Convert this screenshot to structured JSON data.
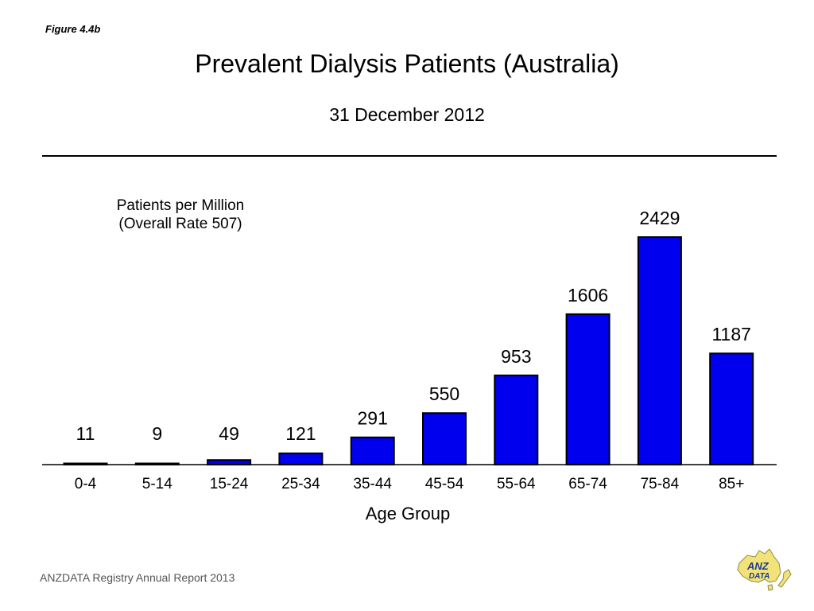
{
  "figure_label": "Figure 4.4b",
  "footer": "ANZDATA Registry Annual Report 2013",
  "logo": {
    "text_top": "ANZ",
    "text_bottom": "DATA"
  },
  "colors": {
    "bar": "#0000EE",
    "bar_stroke": "#000000",
    "logo_fill": "#F3E27A",
    "logo_text": "#1A3A8C"
  },
  "chart_data": {
    "type": "bar",
    "title": "Prevalent Dialysis Patients (Australia)",
    "subtitle": "31 December 2012",
    "ylabel": [
      "Patients per Million",
      "(Overall Rate 507)"
    ],
    "xlabel": "Age Group",
    "categories": [
      "0-4",
      "5-14",
      "15-24",
      "25-34",
      "35-44",
      "45-54",
      "55-64",
      "65-74",
      "75-84",
      "85+"
    ],
    "values": [
      11,
      9,
      49,
      121,
      291,
      550,
      953,
      1606,
      2429,
      1187
    ],
    "data_labels": [
      "11",
      "9",
      "49",
      "121",
      "291",
      "550",
      "953",
      "1606",
      "2429",
      "1187"
    ],
    "ylim": [
      0,
      2429
    ],
    "grid": false,
    "legend": false
  }
}
